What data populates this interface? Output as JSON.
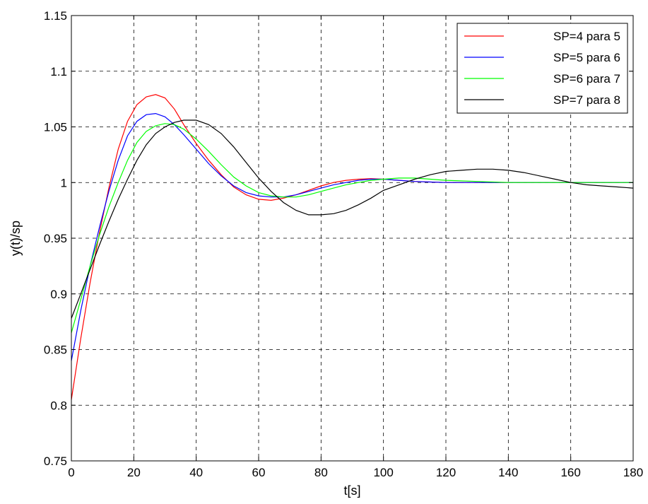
{
  "chart_data": {
    "type": "line",
    "title": "",
    "xlabel": "t[s]",
    "ylabel": "y(t)/sp",
    "xlim": [
      0,
      180
    ],
    "ylim": [
      0.75,
      1.15
    ],
    "xticks": [
      0,
      20,
      40,
      60,
      80,
      100,
      120,
      140,
      160,
      180
    ],
    "yticks": [
      0.75,
      0.8,
      0.85,
      0.9,
      0.95,
      1,
      1.05,
      1.1,
      1.15
    ],
    "xtick_labels": [
      "0",
      "20",
      "40",
      "60",
      "80",
      "100",
      "120",
      "140",
      "160",
      "180"
    ],
    "ytick_labels": [
      "0.75",
      "0.8",
      "0.85",
      "0.9",
      "0.95",
      "1",
      "1.05",
      "1.1",
      "1.15"
    ],
    "grid": true,
    "legend_position": "top-right",
    "series": [
      {
        "name": "SP=4 para 5",
        "color": "#ff0000",
        "x": [
          0,
          3,
          6,
          9,
          12,
          15,
          18,
          21,
          24,
          27,
          30,
          33,
          36,
          40,
          44,
          48,
          52,
          56,
          60,
          64,
          68,
          72,
          76,
          80,
          84,
          88,
          92,
          96,
          100,
          105,
          110,
          115,
          120,
          130,
          140,
          150,
          160,
          170,
          180
        ],
        "y": [
          0.805,
          0.86,
          0.91,
          0.955,
          0.995,
          1.03,
          1.055,
          1.07,
          1.077,
          1.079,
          1.076,
          1.066,
          1.052,
          1.035,
          1.02,
          1.007,
          0.996,
          0.989,
          0.985,
          0.984,
          0.986,
          0.989,
          0.993,
          0.997,
          1.0,
          1.002,
          1.003,
          1.0035,
          1.003,
          1.002,
          1.001,
          1.0005,
          1.0,
          1.0,
          1.0,
          1.0,
          1.0,
          1.0,
          1.0
        ]
      },
      {
        "name": "SP=5 para 6",
        "color": "#0000ff",
        "x": [
          0,
          3,
          6,
          9,
          12,
          15,
          18,
          21,
          24,
          27,
          30,
          33,
          36,
          40,
          44,
          48,
          52,
          56,
          60,
          64,
          68,
          72,
          76,
          80,
          84,
          88,
          92,
          96,
          100,
          105,
          110,
          115,
          120,
          130,
          140,
          150,
          160,
          170,
          180
        ],
        "y": [
          0.84,
          0.885,
          0.925,
          0.96,
          0.992,
          1.02,
          1.042,
          1.055,
          1.061,
          1.062,
          1.059,
          1.052,
          1.043,
          1.03,
          1.017,
          1.006,
          0.997,
          0.991,
          0.988,
          0.987,
          0.987,
          0.989,
          0.992,
          0.995,
          0.998,
          1.0,
          1.002,
          1.003,
          1.003,
          1.002,
          1.001,
          1.0005,
          1.0,
          1.0,
          1.0,
          1.0,
          1.0,
          1.0,
          1.0
        ]
      },
      {
        "name": "SP=6 para 7",
        "color": "#00ff00",
        "x": [
          0,
          3,
          6,
          9,
          12,
          15,
          18,
          21,
          24,
          27,
          30,
          33,
          36,
          40,
          44,
          48,
          52,
          56,
          60,
          64,
          68,
          72,
          76,
          80,
          84,
          88,
          92,
          96,
          100,
          105,
          110,
          115,
          120,
          130,
          140,
          150,
          160,
          170,
          180
        ],
        "y": [
          0.865,
          0.895,
          0.925,
          0.953,
          0.978,
          1.0,
          1.02,
          1.036,
          1.046,
          1.051,
          1.053,
          1.052,
          1.048,
          1.039,
          1.028,
          1.016,
          1.005,
          0.997,
          0.991,
          0.988,
          0.987,
          0.987,
          0.989,
          0.992,
          0.995,
          0.998,
          1.0,
          1.002,
          1.003,
          1.004,
          1.004,
          1.003,
          1.002,
          1.001,
          1.0,
          1.0,
          1.0,
          1.0,
          1.0
        ]
      },
      {
        "name": "SP=7 para 8",
        "color": "#000000",
        "x": [
          0,
          3,
          6,
          9,
          12,
          15,
          18,
          21,
          24,
          27,
          30,
          33,
          36,
          40,
          44,
          48,
          52,
          56,
          60,
          64,
          68,
          72,
          76,
          80,
          84,
          88,
          92,
          96,
          100,
          105,
          110,
          115,
          120,
          125,
          130,
          135,
          140,
          145,
          150,
          155,
          160,
          165,
          170,
          175,
          180
        ],
        "y": [
          0.878,
          0.9,
          0.922,
          0.944,
          0.965,
          0.985,
          1.003,
          1.02,
          1.034,
          1.044,
          1.05,
          1.054,
          1.056,
          1.056,
          1.052,
          1.044,
          1.032,
          1.018,
          1.004,
          0.992,
          0.982,
          0.975,
          0.971,
          0.971,
          0.972,
          0.975,
          0.98,
          0.986,
          0.993,
          0.998,
          1.003,
          1.007,
          1.01,
          1.011,
          1.012,
          1.012,
          1.011,
          1.009,
          1.006,
          1.003,
          1.0,
          0.998,
          0.997,
          0.996,
          0.995
        ]
      }
    ]
  }
}
